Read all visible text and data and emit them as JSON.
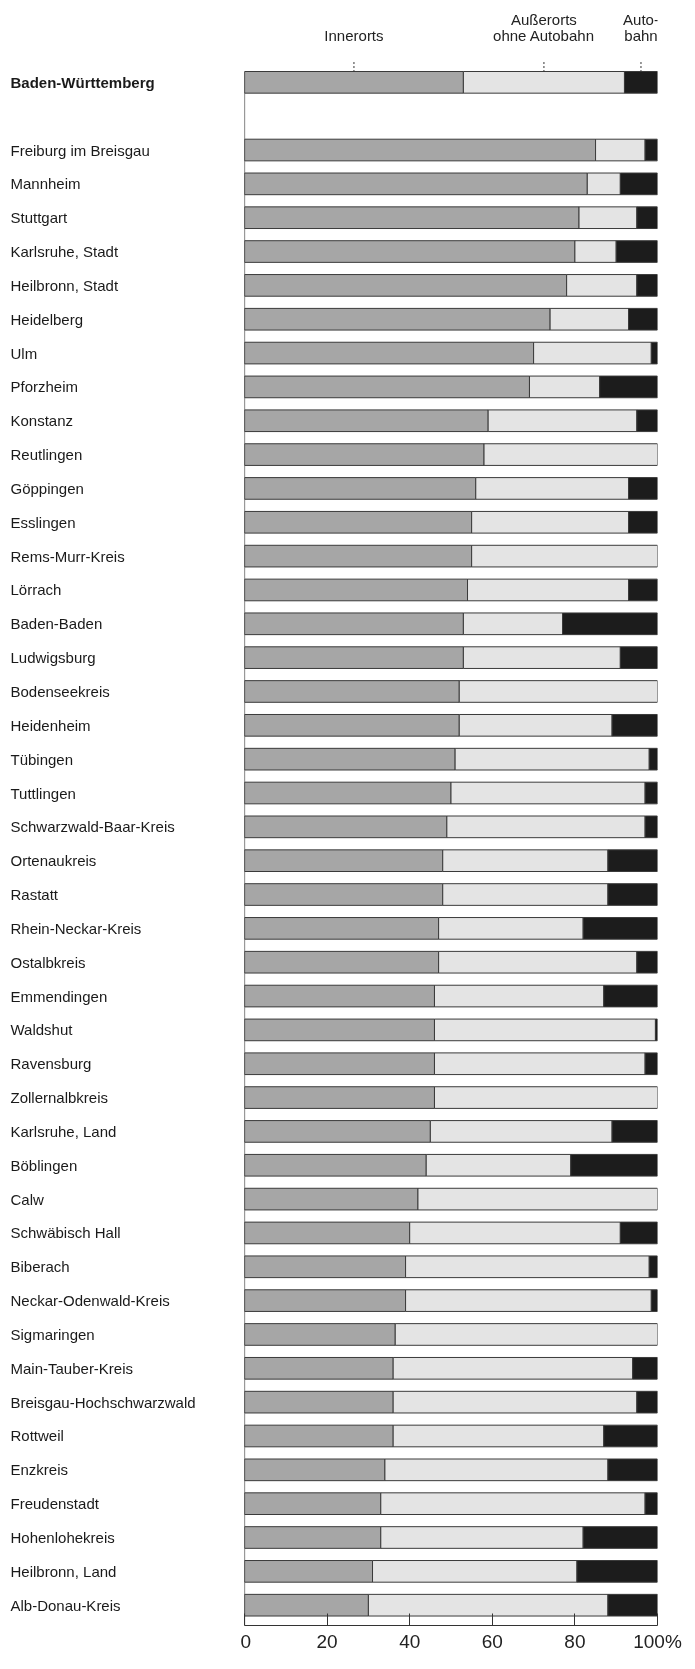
{
  "chart_data": {
    "type": "bar",
    "orientation": "horizontal",
    "stacked": true,
    "grid": false,
    "categories": [
      "Baden-Württemberg",
      null,
      "Freiburg im Breisgau",
      "Mannheim",
      "Stuttgart",
      "Karlsruhe, Stadt",
      "Heilbronn, Stadt",
      "Heidelberg",
      "Ulm",
      "Pforzheim",
      "Konstanz",
      "Reutlingen",
      "Göppingen",
      "Esslingen",
      "Rems-Murr-Kreis",
      "Lörrach",
      "Baden-Baden",
      "Ludwigsburg",
      "Bodenseekreis",
      "Heidenheim",
      "Tübingen",
      "Tuttlingen",
      "Schwarzwald-Baar-Kreis",
      "Ortenaukreis",
      "Rastatt",
      "Rhein-Neckar-Kreis",
      "Ostalbkreis",
      "Emmendingen",
      "Waldshut",
      "Ravensburg",
      "Zollernalbkreis",
      "Karlsruhe, Land",
      "Böblingen",
      "Calw",
      "Schwäbisch Hall",
      "Biberach",
      "Neckar-Odenwald-Kreis",
      "Sigmaringen",
      "Main-Tauber-Kreis",
      "Breisgau-Hochschwarzwald",
      "Rottweil",
      "Enzkreis",
      "Freudenstadt",
      "Hohenlohekreis",
      "Heilbronn, Land",
      "Alb-Donau-Kreis"
    ],
    "series": [
      {
        "name": "Innerorts",
        "color": "#a6a6a6",
        "values": [
          53,
          null,
          85,
          83,
          81,
          80,
          78,
          74,
          70,
          69,
          59,
          58,
          56,
          55,
          55,
          54,
          53,
          53,
          52,
          52,
          51,
          50,
          49,
          48,
          48,
          47,
          47,
          46,
          46,
          46,
          46,
          45,
          44,
          42,
          40,
          39,
          39,
          36.5,
          36,
          36,
          36,
          34,
          33,
          33,
          31,
          30
        ]
      },
      {
        "name": "Außerorts\nohne Autobahn",
        "color": "#e4e4e4",
        "values": [
          39,
          null,
          12,
          8,
          14,
          10,
          17,
          19,
          28.5,
          17,
          36,
          42,
          37,
          38,
          45,
          39,
          24,
          38,
          48,
          37,
          47,
          47,
          48,
          40,
          40,
          35,
          48,
          41,
          53.5,
          51,
          54,
          44,
          35,
          58,
          51,
          59,
          59.5,
          63.5,
          58,
          59,
          51,
          54,
          64,
          49,
          49.5,
          58
        ]
      },
      {
        "name": "Auto-\nbahn",
        "color": "#1c1c1c",
        "values": [
          8,
          null,
          3,
          9,
          5,
          10,
          5,
          7,
          1.5,
          14,
          5,
          0,
          7,
          7,
          0,
          7,
          23,
          9,
          0,
          11,
          2,
          3,
          3,
          12,
          12,
          18,
          5,
          13,
          0.5,
          3,
          0,
          11,
          21,
          0,
          9,
          2,
          1.5,
          0,
          6,
          5,
          13,
          12,
          3,
          18,
          19.5,
          12
        ]
      }
    ],
    "xlim": [
      0,
      100
    ],
    "xticks": [
      0,
      20,
      40,
      60,
      80,
      {
        "value": 100,
        "label": "100%"
      }
    ]
  }
}
